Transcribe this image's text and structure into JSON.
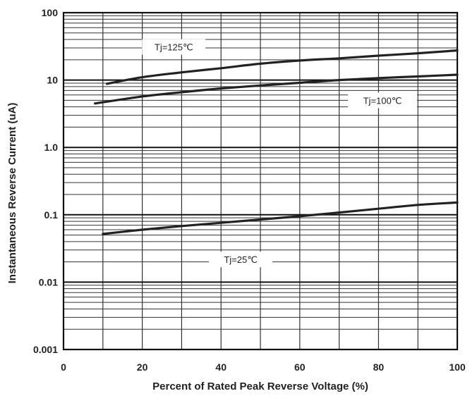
{
  "chart_data": {
    "type": "line",
    "title": "",
    "xlabel": "Percent of Rated Peak Reverse Voltage (%)",
    "ylabel": "Instantaneous Reverse Current (uA)",
    "xlim": [
      0,
      100
    ],
    "ylim": [
      0.001,
      100
    ],
    "yscale": "log",
    "grid": true,
    "x_ticks": [
      0,
      20,
      40,
      60,
      80,
      100
    ],
    "x_tick_labels": [
      "0",
      "20",
      "40",
      "60",
      "80",
      "100"
    ],
    "y_ticks": [
      0.001,
      0.01,
      0.1,
      1,
      10,
      100
    ],
    "y_tick_labels": [
      "0.001",
      "0.01",
      "0.1",
      "1.0",
      "10",
      "100"
    ],
    "series": [
      {
        "name": "Tj=125℃",
        "x": [
          11,
          20,
          30,
          40,
          50,
          60,
          70,
          80,
          90,
          100
        ],
        "y": [
          8.8,
          11,
          13,
          15,
          17.5,
          19.5,
          21,
          23,
          25,
          27.5
        ],
        "color": "#222222"
      },
      {
        "name": "Tj=100℃",
        "x": [
          8,
          20,
          30,
          40,
          50,
          60,
          70,
          80,
          90,
          100
        ],
        "y": [
          4.5,
          5.7,
          6.6,
          7.5,
          8.3,
          9.1,
          10,
          10.7,
          11.3,
          12
        ],
        "color": "#222222"
      },
      {
        "name": "Tj=25℃",
        "x": [
          10,
          20,
          30,
          40,
          50,
          60,
          70,
          80,
          90,
          100
        ],
        "y": [
          0.052,
          0.06,
          0.068,
          0.076,
          0.085,
          0.095,
          0.108,
          0.123,
          0.14,
          0.152
        ],
        "color": "#222222"
      }
    ]
  }
}
